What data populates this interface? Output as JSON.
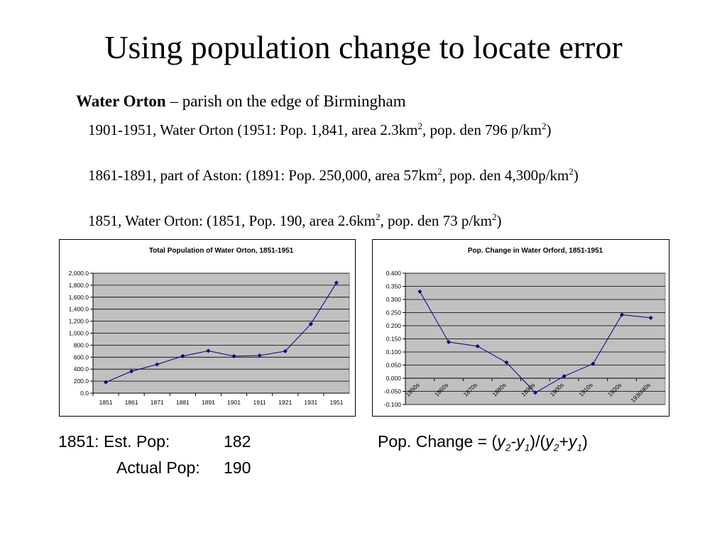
{
  "title": "Using population change to locate error",
  "intro": {
    "bold": "Water Orton",
    "rest": " – parish on the edge of Birmingham"
  },
  "bullets": [
    {
      "a": "1901-1951, Water Orton (1951: Pop. 1,841, area 2.3km",
      "b": ", pop. den 796 p/km",
      "c": ")"
    },
    {
      "a": "1861-1891, part of Aston: (1891: Pop. 250,000, area 57km",
      "b": ", pop. den 4,300p/km",
      "c": ")"
    },
    {
      "a": "1851, Water Orton: (1851, Pop. 190, area 2.6km",
      "b": ", pop. den 73 p/km",
      "c": ")"
    }
  ],
  "sup": "2",
  "chart_data": [
    {
      "type": "line",
      "title": "Total Population of Water Orton, 1851-1951",
      "categories": [
        "1851",
        "1861",
        "1871",
        "1881",
        "1891",
        "1901",
        "1911",
        "1921",
        "1931",
        "1951"
      ],
      "values": [
        182,
        364,
        479,
        618,
        705,
        617,
        627,
        700,
        1153,
        1841
      ],
      "ylim": [
        0,
        2000
      ],
      "yticks": [
        "0.0",
        "200.0",
        "400.0",
        "600.0",
        "800.0",
        "1,000.0",
        "1,200.0",
        "1,400.0",
        "1,600.0",
        "1,800.0",
        "2,000.0"
      ],
      "grid": true,
      "color": "#000080",
      "plot_bg": "#c0c0c0"
    },
    {
      "type": "line",
      "title": "Pop. Change in Water Orford, 1851-1951",
      "categories": [
        "1850s",
        "1860s",
        "1870s",
        "1880s",
        "1890s",
        "1900s",
        "1910s",
        "1920s",
        "1930/40s"
      ],
      "values": [
        0.33,
        0.138,
        0.122,
        0.06,
        -0.055,
        0.008,
        0.055,
        0.242,
        0.23
      ],
      "ylim": [
        -0.1,
        0.4
      ],
      "yticks": [
        "-0.100",
        "-0.050",
        "0.000",
        "0.050",
        "0.100",
        "0.150",
        "0.200",
        "0.250",
        "0.300",
        "0.350",
        "0.400"
      ],
      "grid": true,
      "color": "#000080",
      "plot_bg": "#c0c0c0"
    }
  ],
  "notes": {
    "est_label": "1851: Est. Pop:",
    "est_value": "182",
    "actual_label": "Actual Pop:",
    "actual_value": "190",
    "formula": {
      "prefix": "Pop. Change = (",
      "y": "y",
      "sub2": "2",
      "sub1": "1",
      "minus": "-",
      "mid": ")/(",
      "plus": "+",
      "end": ")"
    }
  }
}
